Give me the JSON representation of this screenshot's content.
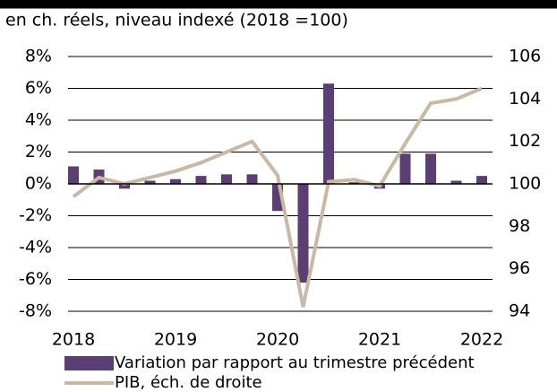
{
  "chart_data": {
    "type": "bar-line",
    "subtitle": "en ch. réels, niveau indexé (2018 =100)",
    "categories": [
      "2018",
      null,
      null,
      null,
      "2019",
      null,
      null,
      null,
      "2020",
      null,
      null,
      null,
      "2021",
      null,
      null,
      null,
      "2022"
    ],
    "series": [
      {
        "name": "Variation par rapport au trimestre précédent",
        "type": "bar",
        "color": "#5b3f73",
        "values": [
          1.1,
          0.9,
          -0.3,
          0.2,
          0.3,
          0.5,
          0.6,
          0.6,
          -1.7,
          -6.2,
          6.3,
          0.1,
          -0.3,
          1.9,
          1.9,
          0.2,
          0.5
        ]
      },
      {
        "name": "PIB, éch. de droite",
        "type": "line",
        "axis": "y2",
        "color": "#c8b9a6",
        "values": [
          99.4,
          100.3,
          100.0,
          100.3,
          100.6,
          101.0,
          101.5,
          102.0,
          100.4,
          94.2,
          100.1,
          100.2,
          99.9,
          101.9,
          103.8,
          104.0,
          104.5
        ]
      }
    ],
    "ylim": [
      -8,
      8
    ],
    "yticks": [
      {
        "value": 8,
        "label": "8%"
      },
      {
        "value": 6,
        "label": "6%"
      },
      {
        "value": 4,
        "label": "4%"
      },
      {
        "value": 2,
        "label": "2%"
      },
      {
        "value": 0,
        "label": "0%"
      },
      {
        "value": -2,
        "label": "-2%"
      },
      {
        "value": -4,
        "label": "-4%"
      },
      {
        "value": -6,
        "label": "-6%"
      },
      {
        "value": -8,
        "label": "-8%"
      }
    ],
    "y2lim": [
      94,
      106
    ],
    "y2ticks": [
      106,
      104,
      102,
      100,
      98,
      96,
      94
    ],
    "grid": true
  }
}
